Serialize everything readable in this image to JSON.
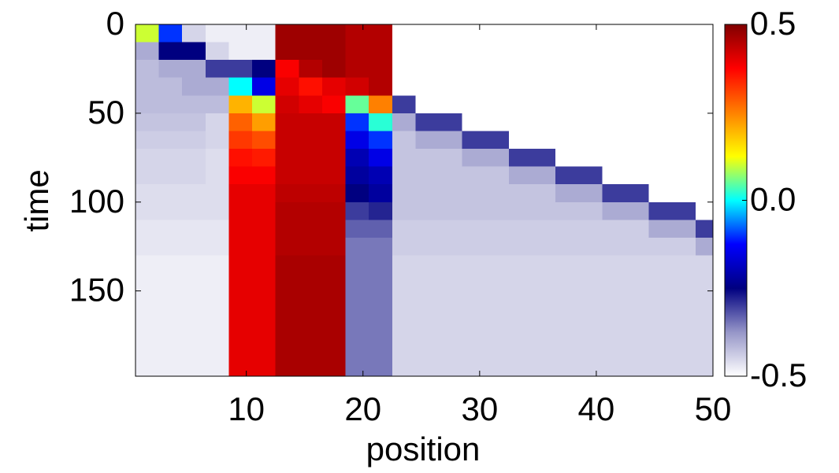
{
  "chart_data": {
    "type": "heatmap",
    "xlabel": "position",
    "ylabel": "time",
    "xbins": [
      0.5,
      2.5,
      4.5,
      6.5,
      8.5,
      10.5,
      12.5,
      14.5,
      16.5,
      18.5,
      20.5,
      22.5,
      24.5,
      26.5,
      28.5,
      30.5,
      32.5,
      34.5,
      36.5,
      38.5,
      40.5,
      42.5,
      44.5,
      46.5,
      48.5,
      50.5
    ],
    "ybins": [
      0,
      10,
      20,
      30,
      40,
      50,
      60,
      70,
      80,
      90,
      100,
      110,
      120,
      130,
      140,
      150,
      160,
      170,
      180,
      190,
      198
    ],
    "xlim": [
      0.5,
      50
    ],
    "ylim": [
      0,
      198
    ],
    "y_reversed": true,
    "xticks": [
      10,
      20,
      30,
      40,
      50
    ],
    "yticks": [
      0,
      50,
      100,
      150
    ],
    "zlim": [
      -0.5,
      0.5
    ],
    "zticks": [
      -0.5,
      {
        "value": 0,
        "label": "0.0"
      },
      0.5
    ],
    "colormap": [
      "#ffffff",
      "#9696c8",
      "#000080",
      "#0000ff",
      "#00ffff",
      "#ffff00",
      "#ff8000",
      "#ff0000",
      "#800000"
    ],
    "z": [
      [
        0.1,
        -0.1,
        -0.45,
        -0.48,
        -0.48,
        -0.48,
        0.47,
        0.47,
        0.47,
        0.45,
        0.45,
        -0.5,
        -0.5,
        -0.5,
        -0.5,
        -0.5,
        -0.5,
        -0.5,
        -0.5,
        -0.5,
        -0.5,
        -0.5,
        -0.5,
        -0.5,
        -0.5
      ],
      [
        -0.4,
        -0.25,
        -0.25,
        -0.45,
        -0.48,
        -0.48,
        0.47,
        0.47,
        0.47,
        0.45,
        0.45,
        -0.5,
        -0.5,
        -0.5,
        -0.5,
        -0.5,
        -0.5,
        -0.5,
        -0.5,
        -0.5,
        -0.5,
        -0.5,
        -0.5,
        -0.5,
        -0.5
      ],
      [
        -0.42,
        -0.4,
        -0.4,
        -0.3,
        -0.3,
        -0.25,
        0.38,
        0.45,
        0.47,
        0.45,
        0.45,
        -0.5,
        -0.5,
        -0.5,
        -0.5,
        -0.5,
        -0.5,
        -0.5,
        -0.5,
        -0.5,
        -0.5,
        -0.5,
        -0.5,
        -0.5,
        -0.5
      ],
      [
        -0.42,
        -0.42,
        -0.4,
        -0.4,
        0.0,
        -0.15,
        0.4,
        0.36,
        0.4,
        0.42,
        0.45,
        -0.5,
        -0.5,
        -0.5,
        -0.5,
        -0.5,
        -0.5,
        -0.5,
        -0.5,
        -0.5,
        -0.5,
        -0.5,
        -0.5,
        -0.5,
        -0.5
      ],
      [
        -0.42,
        -0.42,
        -0.42,
        -0.42,
        0.2,
        0.1,
        0.42,
        0.4,
        0.38,
        0.05,
        0.25,
        -0.3,
        -0.5,
        -0.5,
        -0.5,
        -0.5,
        -0.5,
        -0.5,
        -0.5,
        -0.5,
        -0.5,
        -0.5,
        -0.5,
        -0.5,
        -0.5
      ],
      [
        -0.43,
        -0.43,
        -0.43,
        -0.45,
        0.28,
        0.22,
        0.43,
        0.43,
        0.43,
        -0.1,
        0.02,
        -0.4,
        -0.3,
        -0.3,
        -0.5,
        -0.5,
        -0.5,
        -0.5,
        -0.5,
        -0.5,
        -0.5,
        -0.5,
        -0.5,
        -0.5,
        -0.5
      ],
      [
        -0.44,
        -0.44,
        -0.44,
        -0.45,
        0.32,
        0.3,
        0.43,
        0.43,
        0.43,
        -0.15,
        -0.1,
        -0.43,
        -0.4,
        -0.4,
        -0.3,
        -0.3,
        -0.5,
        -0.5,
        -0.5,
        -0.5,
        -0.5,
        -0.5,
        -0.5,
        -0.5,
        -0.5
      ],
      [
        -0.45,
        -0.45,
        -0.45,
        -0.46,
        0.36,
        0.35,
        0.43,
        0.43,
        0.43,
        -0.2,
        -0.15,
        -0.43,
        -0.43,
        -0.43,
        -0.4,
        -0.4,
        -0.3,
        -0.3,
        -0.5,
        -0.5,
        -0.5,
        -0.5,
        -0.5,
        -0.5,
        -0.5
      ],
      [
        -0.45,
        -0.45,
        -0.45,
        -0.46,
        0.38,
        0.38,
        0.43,
        0.43,
        0.43,
        -0.22,
        -0.2,
        -0.43,
        -0.43,
        -0.43,
        -0.43,
        -0.43,
        -0.4,
        -0.4,
        -0.3,
        -0.3,
        -0.5,
        -0.5,
        -0.5,
        -0.5,
        -0.5
      ],
      [
        -0.46,
        -0.46,
        -0.46,
        -0.46,
        0.4,
        0.4,
        0.44,
        0.44,
        0.44,
        -0.25,
        -0.22,
        -0.43,
        -0.43,
        -0.43,
        -0.43,
        -0.43,
        -0.43,
        -0.43,
        -0.4,
        -0.4,
        -0.3,
        -0.3,
        -0.5,
        -0.5,
        -0.5
      ],
      [
        -0.46,
        -0.46,
        -0.46,
        -0.46,
        0.4,
        0.4,
        0.45,
        0.45,
        0.45,
        -0.3,
        -0.28,
        -0.43,
        -0.43,
        -0.43,
        -0.43,
        -0.43,
        -0.43,
        -0.43,
        -0.43,
        -0.43,
        -0.4,
        -0.4,
        -0.3,
        -0.3,
        -0.5
      ],
      [
        -0.47,
        -0.47,
        -0.47,
        -0.47,
        0.4,
        0.4,
        0.45,
        0.45,
        0.45,
        -0.33,
        -0.33,
        -0.44,
        -0.44,
        -0.44,
        -0.44,
        -0.44,
        -0.44,
        -0.44,
        -0.44,
        -0.44,
        -0.44,
        -0.44,
        -0.4,
        -0.4,
        -0.3
      ],
      [
        -0.47,
        -0.47,
        -0.47,
        -0.47,
        0.4,
        0.4,
        0.45,
        0.45,
        0.45,
        -0.35,
        -0.35,
        -0.44,
        -0.44,
        -0.44,
        -0.44,
        -0.44,
        -0.44,
        -0.44,
        -0.44,
        -0.44,
        -0.44,
        -0.44,
        -0.44,
        -0.44,
        -0.4
      ],
      [
        -0.48,
        -0.48,
        -0.48,
        -0.48,
        0.4,
        0.4,
        0.46,
        0.46,
        0.46,
        -0.35,
        -0.35,
        -0.45,
        -0.45,
        -0.45,
        -0.45,
        -0.45,
        -0.45,
        -0.45,
        -0.45,
        -0.45,
        -0.45,
        -0.45,
        -0.45,
        -0.45,
        -0.45
      ],
      [
        -0.48,
        -0.48,
        -0.48,
        -0.48,
        0.4,
        0.4,
        0.46,
        0.46,
        0.46,
        -0.35,
        -0.35,
        -0.45,
        -0.45,
        -0.45,
        -0.45,
        -0.45,
        -0.45,
        -0.45,
        -0.45,
        -0.45,
        -0.45,
        -0.45,
        -0.45,
        -0.45,
        -0.45
      ],
      [
        -0.48,
        -0.48,
        -0.48,
        -0.48,
        0.4,
        0.4,
        0.46,
        0.46,
        0.46,
        -0.35,
        -0.35,
        -0.45,
        -0.45,
        -0.45,
        -0.45,
        -0.45,
        -0.45,
        -0.45,
        -0.45,
        -0.45,
        -0.45,
        -0.45,
        -0.45,
        -0.45,
        -0.45
      ],
      [
        -0.48,
        -0.48,
        -0.48,
        -0.48,
        0.4,
        0.4,
        0.46,
        0.46,
        0.46,
        -0.35,
        -0.35,
        -0.45,
        -0.45,
        -0.45,
        -0.45,
        -0.45,
        -0.45,
        -0.45,
        -0.45,
        -0.45,
        -0.45,
        -0.45,
        -0.45,
        -0.45,
        -0.45
      ],
      [
        -0.48,
        -0.48,
        -0.48,
        -0.48,
        0.4,
        0.4,
        0.46,
        0.46,
        0.46,
        -0.35,
        -0.35,
        -0.45,
        -0.45,
        -0.45,
        -0.45,
        -0.45,
        -0.45,
        -0.45,
        -0.45,
        -0.45,
        -0.45,
        -0.45,
        -0.45,
        -0.45,
        -0.45
      ],
      [
        -0.48,
        -0.48,
        -0.48,
        -0.48,
        0.4,
        0.4,
        0.46,
        0.46,
        0.46,
        -0.35,
        -0.35,
        -0.45,
        -0.45,
        -0.45,
        -0.45,
        -0.45,
        -0.45,
        -0.45,
        -0.45,
        -0.45,
        -0.45,
        -0.45,
        -0.45,
        -0.45,
        -0.45
      ],
      [
        -0.48,
        -0.48,
        -0.48,
        -0.48,
        0.4,
        0.4,
        0.46,
        0.46,
        0.46,
        -0.35,
        -0.35,
        -0.45,
        -0.45,
        -0.45,
        -0.45,
        -0.45,
        -0.45,
        -0.45,
        -0.45,
        -0.45,
        -0.45,
        -0.45,
        -0.45,
        -0.45,
        -0.45
      ]
    ]
  }
}
